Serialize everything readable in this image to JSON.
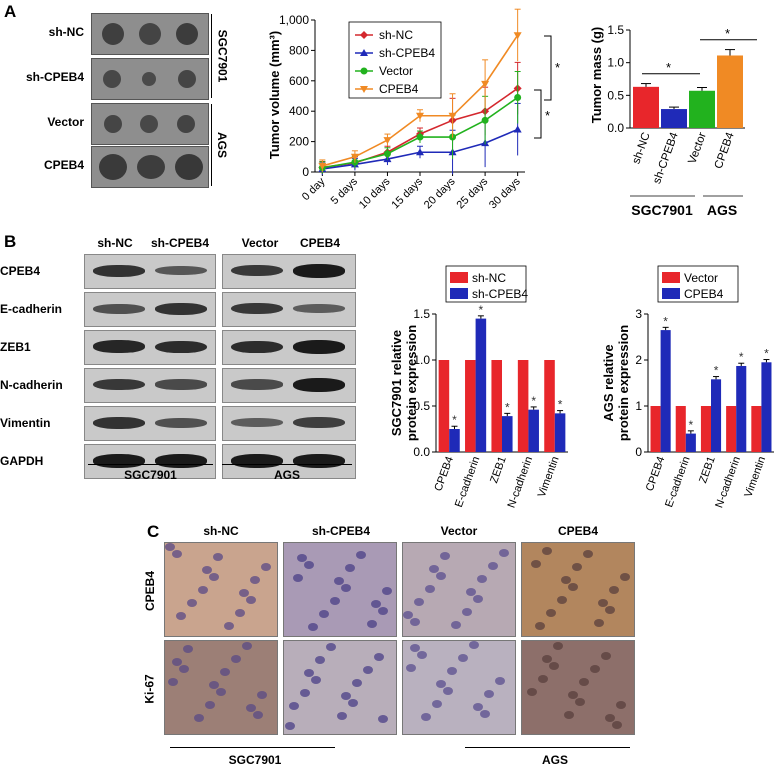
{
  "panels": {
    "a": "A",
    "b": "B",
    "c": "C"
  },
  "panelA": {
    "rows": [
      "sh-NC",
      "sh-CPEB4",
      "Vector",
      "CPEB4"
    ],
    "groups": [
      "SGC7901",
      "AGS"
    ]
  },
  "panelB": {
    "col_headers": [
      "sh-NC",
      "sh-CPEB4",
      "Vector",
      "CPEB4"
    ],
    "proteins": [
      "CPEB4",
      "E-cadherin",
      "ZEB1",
      "N-cadherin",
      "Vimentin",
      "GAPDH"
    ],
    "groups": [
      "SGC7901",
      "AGS"
    ]
  },
  "panelC": {
    "col_headers": [
      "sh-NC",
      "sh-CPEB4",
      "Vector",
      "CPEB4"
    ],
    "rows": [
      "CPEB4",
      "Ki-67"
    ],
    "groups": [
      "SGC7901",
      "AGS"
    ]
  },
  "colors": {
    "red": "#e8262b",
    "blue": "#1f2ab8",
    "green": "#22b21e",
    "orange": "#f08a24",
    "darkred": "#d4282e"
  },
  "chart_data": [
    {
      "type": "line",
      "ylabel": "Tumor volume (mm³)",
      "x": [
        "0 day",
        "5 days",
        "10 days",
        "15 days",
        "20 days",
        "25 days",
        "30 days"
      ],
      "ylim": [
        0,
        1000
      ],
      "yticks": [
        "0",
        "200",
        "400",
        "600",
        "800",
        "1,000"
      ],
      "series": [
        {
          "name": "sh-NC",
          "values": [
            30,
            60,
            130,
            250,
            340,
            400,
            550
          ]
        },
        {
          "name": "sh-CPEB4",
          "values": [
            20,
            50,
            85,
            130,
            130,
            190,
            280
          ]
        },
        {
          "name": "Vector",
          "values": [
            28,
            65,
            120,
            230,
            230,
            340,
            490
          ]
        },
        {
          "name": "CPEB4",
          "values": [
            40,
            100,
            210,
            370,
            370,
            580,
            900
          ]
        }
      ],
      "annotations": [
        "*",
        "*"
      ]
    },
    {
      "type": "bar",
      "ylabel": "Tumor mass (g)",
      "categories": [
        "sh-NC",
        "sh-CPEB4",
        "Vector",
        "CPEB4"
      ],
      "values": [
        0.63,
        0.29,
        0.57,
        1.11
      ],
      "ylim": [
        0,
        1.5
      ],
      "yticks": [
        "0.0",
        "0.5",
        "1.0",
        "1.5"
      ],
      "group_labels": [
        "SGC7901",
        "AGS"
      ],
      "annotations": [
        "*",
        "*"
      ]
    },
    {
      "type": "bar",
      "ylabel": "SGC7901 relative protein expression",
      "categories": [
        "CPEB4",
        "E-cadherin",
        "ZEB1",
        "N-cadherin",
        "Vimentin"
      ],
      "ylim": [
        0,
        1.5
      ],
      "yticks": [
        "0.0",
        "0.5",
        "1.0",
        "1.5"
      ],
      "series": [
        {
          "name": "sh-NC",
          "values": [
            1,
            1,
            1,
            1,
            1
          ]
        },
        {
          "name": "sh-CPEB4",
          "values": [
            0.25,
            1.45,
            0.39,
            0.46,
            0.42
          ]
        }
      ],
      "annotations": [
        "*"
      ]
    },
    {
      "type": "bar",
      "ylabel": "AGS relative protein expression",
      "categories": [
        "CPEB4",
        "E-cadherin",
        "ZEB1",
        "N-cadherin",
        "Vimentin"
      ],
      "ylim": [
        0,
        3
      ],
      "yticks": [
        "0",
        "1",
        "2",
        "3"
      ],
      "series": [
        {
          "name": "Vector",
          "values": [
            1,
            1,
            1,
            1,
            1
          ]
        },
        {
          "name": "CPEB4",
          "values": [
            2.65,
            0.4,
            1.58,
            1.87,
            1.95
          ]
        }
      ],
      "annotations": [
        "*"
      ]
    }
  ]
}
